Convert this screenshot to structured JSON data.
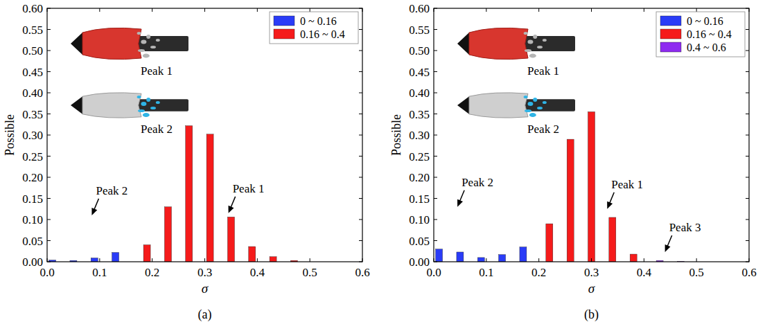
{
  "chart_data": [
    {
      "type": "bar",
      "panel": "(a)",
      "x_label": "σ",
      "y_label": "Possible",
      "xlim": [
        0,
        0.6
      ],
      "ylim": [
        0,
        0.6
      ],
      "xticks": [
        {
          "value": 0,
          "label": "0.0"
        },
        {
          "value": 0.1,
          "label": "0.1"
        },
        {
          "value": 0.2,
          "label": "0.2"
        },
        {
          "value": 0.3,
          "label": "0.3"
        },
        {
          "value": 0.4,
          "label": "0.4"
        },
        {
          "value": 0.5,
          "label": "0.5"
        },
        {
          "value": 0.6,
          "label": "0.6"
        }
      ],
      "yticks": [
        {
          "value": 0,
          "label": "0.00"
        },
        {
          "value": 0.05,
          "label": "0.05"
        },
        {
          "value": 0.1,
          "label": "0.10"
        },
        {
          "value": 0.15,
          "label": "0.15"
        },
        {
          "value": 0.2,
          "label": "0.20"
        },
        {
          "value": 0.25,
          "label": "0.25"
        },
        {
          "value": 0.3,
          "label": "0.30"
        },
        {
          "value": 0.35,
          "label": "0.35"
        },
        {
          "value": 0.4,
          "label": "0.40"
        },
        {
          "value": 0.45,
          "label": "0.45"
        },
        {
          "value": 0.5,
          "label": "0.50"
        },
        {
          "value": 0.55,
          "label": "0.55"
        },
        {
          "value": 0.6,
          "label": "0.60"
        }
      ],
      "legend": "top-right",
      "series": [
        {
          "name": "0 ~ 0.16",
          "color": "#2a3cf7",
          "x": [
            0.01,
            0.05,
            0.09,
            0.13
          ],
          "values": [
            0.004,
            0.003,
            0.009,
            0.022
          ]
        },
        {
          "name": "0.16 ~ 0.4",
          "color": "#f51b1b",
          "x": [
            0.19,
            0.23,
            0.27,
            0.31,
            0.35,
            0.39,
            0.43,
            0.47
          ],
          "values": [
            0.04,
            0.13,
            0.322,
            0.302,
            0.106,
            0.036,
            0.012,
            0.003
          ]
        }
      ],
      "annotations": [
        {
          "text": "Peak 2",
          "x": 0.085,
          "y": 0.11
        },
        {
          "text": "Peak 1",
          "x": 0.345,
          "y": 0.115
        }
      ],
      "inset_labels": [
        "Peak 1",
        "Peak 2"
      ]
    },
    {
      "type": "bar",
      "panel": "(b)",
      "x_label": "σ",
      "y_label": "Possible",
      "xlim": [
        0,
        0.6
      ],
      "ylim": [
        0,
        0.6
      ],
      "xticks": [
        {
          "value": 0,
          "label": "0.0"
        },
        {
          "value": 0.1,
          "label": "0.1"
        },
        {
          "value": 0.2,
          "label": "0.2"
        },
        {
          "value": 0.3,
          "label": "0.3"
        },
        {
          "value": 0.4,
          "label": "0.4"
        },
        {
          "value": 0.5,
          "label": "0.5"
        },
        {
          "value": 0.6,
          "label": "0.6"
        }
      ],
      "yticks": [
        {
          "value": 0,
          "label": "0.00"
        },
        {
          "value": 0.05,
          "label": "0.05"
        },
        {
          "value": 0.1,
          "label": "0.10"
        },
        {
          "value": 0.15,
          "label": "0.15"
        },
        {
          "value": 0.2,
          "label": "0.20"
        },
        {
          "value": 0.25,
          "label": "0.25"
        },
        {
          "value": 0.3,
          "label": "0.30"
        },
        {
          "value": 0.35,
          "label": "0.35"
        },
        {
          "value": 0.4,
          "label": "0.40"
        },
        {
          "value": 0.45,
          "label": "0.45"
        },
        {
          "value": 0.5,
          "label": "0.50"
        },
        {
          "value": 0.55,
          "label": "0.55"
        },
        {
          "value": 0.6,
          "label": "0.60"
        }
      ],
      "legend": "top-right",
      "series": [
        {
          "name": "0 ~ 0.16",
          "color": "#2a3cf7",
          "x": [
            0.01,
            0.05,
            0.09,
            0.13,
            0.17
          ],
          "values": [
            0.03,
            0.023,
            0.01,
            0.017,
            0.035
          ]
        },
        {
          "name": "0.16 ~ 0.4",
          "color": "#f51b1b",
          "x": [
            0.22,
            0.26,
            0.3,
            0.34,
            0.38
          ],
          "values": [
            0.09,
            0.29,
            0.355,
            0.105,
            0.018
          ]
        },
        {
          "name": "0.4 ~ 0.6",
          "color": "#8e2bf0",
          "x": [
            0.43,
            0.47
          ],
          "values": [
            0.003,
            0.001
          ]
        }
      ],
      "annotations": [
        {
          "text": "Peak 2",
          "x": 0.045,
          "y": 0.13
        },
        {
          "text": "Peak 1",
          "x": 0.33,
          "y": 0.125
        },
        {
          "text": "Peak 3",
          "x": 0.44,
          "y": 0.023
        }
      ],
      "inset_labels": [
        "Peak 1",
        "Peak 2"
      ]
    }
  ]
}
